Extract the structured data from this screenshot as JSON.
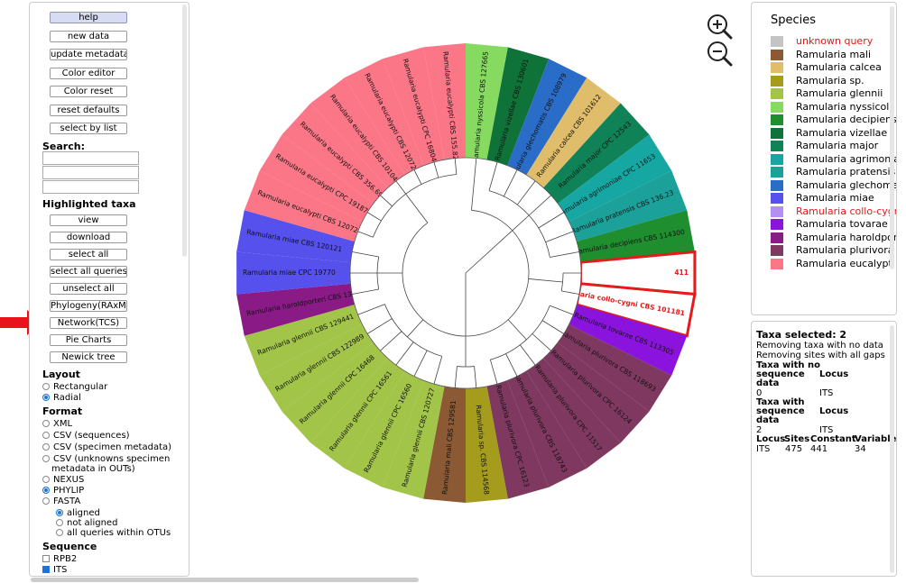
{
  "buttons": {
    "help": "help",
    "new_data": "new data",
    "update_metadata": "update metadata",
    "color_editor": "Color editor",
    "color_reset": "Color reset",
    "reset_defaults": "reset defaults",
    "select_by_list": "select by list"
  },
  "search": {
    "label": "Search:"
  },
  "highlighted": {
    "label": "Highlighted taxa",
    "buttons": [
      "view",
      "download",
      "select all",
      "select all queries",
      "unselect all",
      "Phylogeny(RAxML)",
      "Network(TCS)",
      "Pie Charts",
      "Newick tree"
    ]
  },
  "layout": {
    "label": "Layout",
    "options": [
      "Rectangular",
      "Radial"
    ]
  },
  "format": {
    "label": "Format",
    "options": [
      "XML",
      "CSV (sequences)",
      "CSV (specimen metadata)",
      "CSV (unknowns specimen",
      "metadata in OUTs)",
      "NEXUS",
      "PHYLIP",
      "FASTA"
    ],
    "sub": [
      "aligned",
      "not aligned",
      "all queries within OTUs"
    ]
  },
  "sequence": {
    "label": "Sequence",
    "options": [
      "RPB2",
      "ITS"
    ]
  },
  "legend": {
    "title": "Species",
    "items": [
      {
        "label": "unknown query",
        "color": "#c4c4c4",
        "red": true
      },
      {
        "label": "Ramularia mali",
        "color": "#8b5a34"
      },
      {
        "label": "Ramularia calcea",
        "color": "#dfbd6a"
      },
      {
        "label": "Ramularia sp.",
        "color": "#a59c1e"
      },
      {
        "label": "Ramularia glennii",
        "color": "#a2c449"
      },
      {
        "label": "Ramularia nyssicola",
        "color": "#86da60"
      },
      {
        "label": "Ramularia decipiens",
        "color": "#1f8e2e"
      },
      {
        "label": "Ramularia vizellae",
        "color": "#0e7239"
      },
      {
        "label": "Ramularia major",
        "color": "#108257"
      },
      {
        "label": "Ramularia agrimoniae",
        "color": "#17a7a2"
      },
      {
        "label": "Ramularia pratensis",
        "color": "#1ba09a"
      },
      {
        "label": "Ramularia glechomatis",
        "color": "#2a6dc8"
      },
      {
        "label": "Ramularia miae",
        "color": "#5650ed"
      },
      {
        "label": "Ramularia collo-cygni",
        "color": "#b28ff0",
        "red": true
      },
      {
        "label": "Ramularia tovarae",
        "color": "#8a13de"
      },
      {
        "label": "Ramularia haroldporteri",
        "color": "#8a1a86"
      },
      {
        "label": "Ramularia plurivora",
        "color": "#7f3961"
      },
      {
        "label": "Ramularia eucalypti",
        "color": "#fb7787"
      }
    ]
  },
  "info": {
    "taxa_selected": "Taxa selected: 2",
    "line1": "Removing taxa with no data",
    "line2": "Removing sites with all gaps",
    "t1": [
      "Taxa with no",
      "sequence",
      "data"
    ],
    "locus": "Locus",
    "v1": "0",
    "l1": "ITS",
    "t2": [
      "Taxa with",
      "sequence",
      "data"
    ],
    "v2": "2",
    "l2": "ITS",
    "cols": [
      "Locus",
      "Sites",
      "Constant",
      "Variable"
    ],
    "vals": [
      "ITS",
      "475",
      "441",
      "34"
    ]
  },
  "tree": {
    "tips": [
      {
        "label": "Ramularia nyssicola CBS 127665",
        "color": "#86da60"
      },
      {
        "label": "Ramularia vizellae CBS 130601",
        "color": "#0e7239"
      },
      {
        "label": "Ramularia glechomatis CBS 108979",
        "color": "#2a6dc8"
      },
      {
        "label": "Ramularia calcea CBS 101612",
        "color": "#dfbd6a"
      },
      {
        "label": "Ramularia major CPC 12543",
        "color": "#108257"
      },
      {
        "label": "Ramularia agrimoniae CPC 11653",
        "color": "#17a7a2"
      },
      {
        "label": "Ramularia pratensis CBS 136.23",
        "color": "#1ba09a"
      },
      {
        "label": "Ramularia decipiens CBS 114300",
        "color": "#1f8e2e"
      },
      {
        "label": "411",
        "color": "#ffffff",
        "query": true
      },
      {
        "label": "Ramularia collo-cygni CBS 101181",
        "color": "#ffffff",
        "query": true
      },
      {
        "label": "Ramularia tovarae CBS 113305",
        "color": "#8a13de"
      },
      {
        "label": "Ramularia plurivora CBS 118693",
        "color": "#7f3961"
      },
      {
        "label": "Ramularia plurivora CPC 16124",
        "color": "#7f3961"
      },
      {
        "label": "Ramularia plurivora CPC 11517",
        "color": "#7f3961"
      },
      {
        "label": "Ramularia plurivora CBS 118743",
        "color": "#7f3961"
      },
      {
        "label": "Ramularia plurivora CPC 16123",
        "color": "#7f3961"
      },
      {
        "label": "Ramularia sp. CBS 114568",
        "color": "#a59c1e"
      },
      {
        "label": "Ramularia mali CBS 129581",
        "color": "#8b5a34"
      },
      {
        "label": "Ramularia glennii CBS 120727",
        "color": "#a2c449"
      },
      {
        "label": "Ramularia glennii CPC 16560",
        "color": "#a2c449"
      },
      {
        "label": "Ramularia glennii CPC 16561",
        "color": "#a2c449"
      },
      {
        "label": "Ramularia glennii CPC 16468",
        "color": "#a2c449"
      },
      {
        "label": "Ramularia glennii CBS 122989",
        "color": "#a2c449"
      },
      {
        "label": "Ramularia glennii CBS 129441",
        "color": "#a2c449"
      },
      {
        "label": "Ramularia haroldporteri CBS 137273",
        "color": "#8a1a86"
      },
      {
        "label": "Ramularia miae CPC 19770",
        "color": "#5650ed"
      },
      {
        "label": "Ramularia miae CBS 120121",
        "color": "#5650ed"
      },
      {
        "label": "Ramularia eucalypti CBS 120726",
        "color": "#fb7787"
      },
      {
        "label": "Ramularia eucalypti CPC 19187",
        "color": "#fb7787"
      },
      {
        "label": "Ramularia eucalypti CBS 356.69",
        "color": "#fb7787"
      },
      {
        "label": "Ramularia eucalypti CBS 101045",
        "color": "#fb7787"
      },
      {
        "label": "Ramularia eucalypti CBS 120728",
        "color": "#fb7787"
      },
      {
        "label": "Ramularia eucalypti CPC 16804",
        "color": "#fb7787"
      },
      {
        "label": "Ramularia eucalypti CBS 155.82",
        "color": "#fb7787"
      }
    ]
  }
}
